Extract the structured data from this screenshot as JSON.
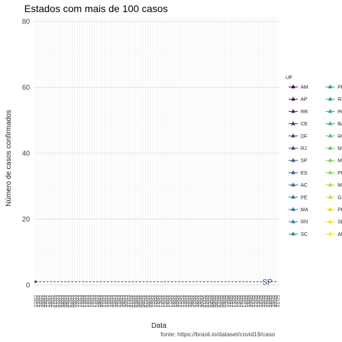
{
  "chart_data": {
    "type": "line",
    "title": "Estados com mais de 100 casos",
    "xlabel": "Data",
    "ylabel": "Número de casos confirmados",
    "caption": "fonte: https://brasil.io/dataset/covid19/caso",
    "ylim": [
      0,
      80
    ],
    "yticks": [
      0,
      20,
      40,
      60,
      80
    ],
    "grid": true,
    "legend_title": "UF",
    "legend_position": "right",
    "x_ticks": [
      "22/02",
      "23/02",
      "24/02",
      "25/02",
      "26/02",
      "27/02",
      "28/02",
      "29/02",
      "01/03",
      "02/03",
      "03/03",
      "04/03",
      "05/03",
      "06/03",
      "07/03",
      "08/03",
      "09/03",
      "10/03",
      "11/03",
      "12/03",
      "13/03",
      "14/03",
      "15/03",
      "16/03",
      "17/03",
      "18/03",
      "19/03",
      "20/03",
      "21/03",
      "22/03",
      "23/03",
      "24/03",
      "25/03",
      "26/03",
      "27/03",
      "28/03",
      "29/03",
      "30/03",
      "31/03",
      "01/04",
      "02/04",
      "03/04",
      "04/04",
      "05/04",
      "06/04",
      "07/04",
      "08/04",
      "09/04",
      "10/04",
      "11/04",
      "12/04",
      "13/04",
      "14/04",
      "15/04",
      "16/04",
      "17/04",
      "18/04",
      "19/04",
      "20/04",
      "21/04",
      "22/04",
      "23/04",
      "24/04",
      "25/04",
      "26/04",
      "27/04",
      "28/04",
      "29/04",
      "30/04",
      "01/05",
      "02/05",
      "03/05",
      "04/05",
      "05/05",
      "06/05",
      "07/05",
      "08/05",
      "09/05",
      "10/05",
      "11/05",
      "12/05",
      "13/05",
      "14/05",
      "15/05",
      "16/05",
      "17/05",
      "18/05",
      "19/05",
      "20/05",
      "21/05",
      "22/05",
      "23/05",
      "24/05",
      "25/05",
      "26/05",
      "27/05",
      "28/05",
      "29/05",
      "30/05",
      "31/05"
    ],
    "series": [
      {
        "name": "AM",
        "color": "#440154"
      },
      {
        "name": "AP",
        "color": "#471063"
      },
      {
        "name": "RR",
        "color": "#481d6f"
      },
      {
        "name": "CE",
        "color": "#472a7a"
      },
      {
        "name": "DF",
        "color": "#443983"
      },
      {
        "name": "RJ",
        "color": "#3f4788"
      },
      {
        "name": "SP",
        "color": "#3b528b",
        "end_label": "SP",
        "points": [
          {
            "x": "22/02",
            "y": 1
          },
          {
            "x": "31/05",
            "y": 1
          }
        ]
      },
      {
        "name": "ES",
        "color": "#355e8d"
      },
      {
        "name": "AC",
        "color": "#31688e"
      },
      {
        "name": "PE",
        "color": "#2c728e"
      },
      {
        "name": "MA",
        "color": "#287c8e"
      },
      {
        "name": "RN",
        "color": "#24868e"
      },
      {
        "name": "SC",
        "color": "#21908c"
      },
      {
        "name": "PR",
        "color": "#1f9a8a"
      },
      {
        "name": "RS",
        "color": "#20a486"
      },
      {
        "name": "PA",
        "color": "#27ad81"
      },
      {
        "name": "BA",
        "color": "#35b779"
      },
      {
        "name": "RO",
        "color": "#47c16e"
      },
      {
        "name": "MT",
        "color": "#5dc863"
      },
      {
        "name": "MS",
        "color": "#75d054"
      },
      {
        "name": "PB",
        "color": "#8fd744"
      },
      {
        "name": "MG",
        "color": "#aadc32"
      },
      {
        "name": "GO",
        "color": "#c5e021"
      },
      {
        "name": "PI",
        "color": "#dde318"
      },
      {
        "name": "SE",
        "color": "#f0e51c"
      },
      {
        "name": "AL",
        "color": "#fde725"
      }
    ]
  }
}
